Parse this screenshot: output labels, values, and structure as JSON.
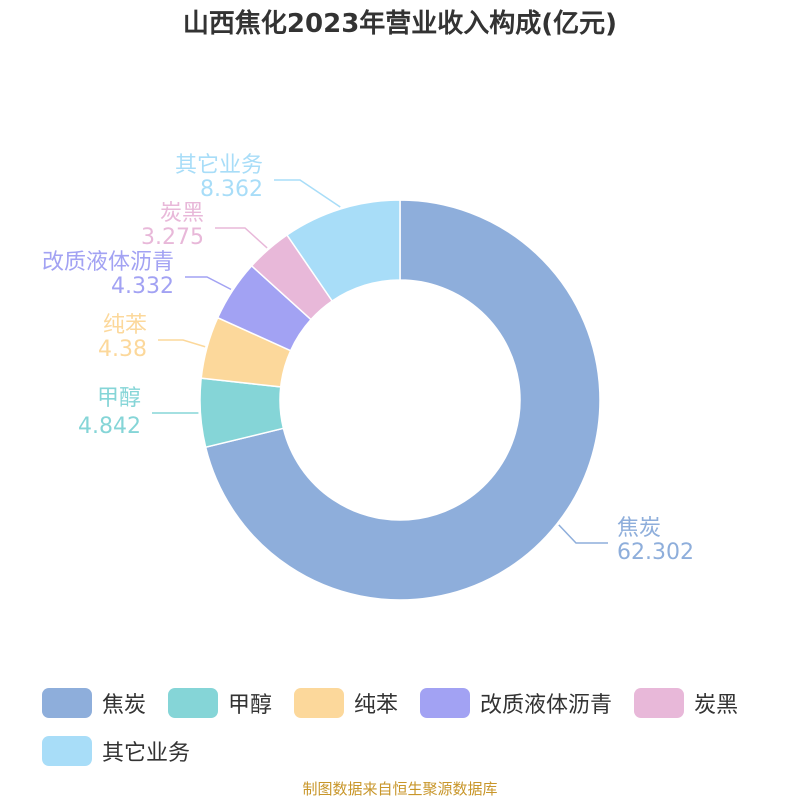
{
  "chart_data": {
    "type": "pie",
    "variant": "donut",
    "title": "山西焦化2023年营业收入构成(亿元)",
    "legend_position": "bottom",
    "slices": [
      {
        "name": "焦炭",
        "value": 62.302,
        "value_label": "62.302",
        "color": "#8eaedb"
      },
      {
        "name": "甲醇",
        "value": 4.842,
        "value_label": "4.842",
        "color": "#85d5d7"
      },
      {
        "name": "纯苯",
        "value": 4.38,
        "value_label": "4.38",
        "color": "#fcd89b"
      },
      {
        "name": "改质液体沥青",
        "value": 4.332,
        "value_label": "4.332",
        "color": "#a2a2f3"
      },
      {
        "name": "炭黑",
        "value": 3.275,
        "value_label": "3.275",
        "color": "#e8b8d9"
      },
      {
        "name": "其它业务",
        "value": 8.362,
        "value_label": "8.362",
        "color": "#a8ddf8"
      }
    ]
  },
  "footer": {
    "source": "制图数据来自恒生聚源数据库"
  }
}
